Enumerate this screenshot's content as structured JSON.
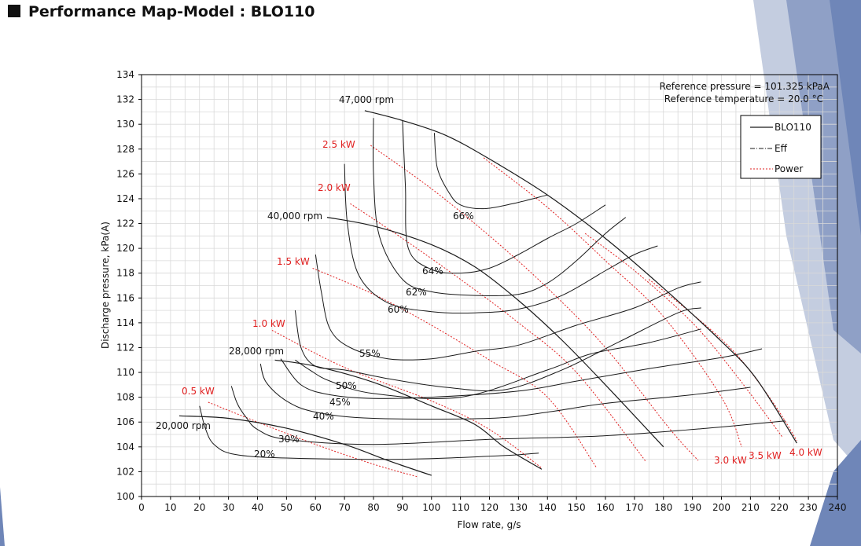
{
  "header": {
    "title": "Performance Map-Model : BLO110"
  },
  "colors": {
    "speed_line": "#1a1a1a",
    "eff_line": "#1a1a1a",
    "power_line": "#e02020",
    "grid": "#d9d9d9",
    "decor_blue": "#6f86b8"
  },
  "chart_data": {
    "type": "line",
    "title": "",
    "xlabel": "Flow rate, g/s",
    "ylabel": "Discharge pressure, kPa(A)",
    "xlim": [
      0,
      240
    ],
    "ylim": [
      100,
      134
    ],
    "x_ticks": [
      "0",
      "10",
      "20",
      "30",
      "40",
      "50",
      "60",
      "70",
      "80",
      "90",
      "100",
      "110",
      "120",
      "130",
      "140",
      "150",
      "160",
      "170",
      "180",
      "190",
      "200",
      "210",
      "220",
      "230",
      "240"
    ],
    "y_ticks": [
      "100",
      "102",
      "104",
      "106",
      "108",
      "110",
      "112",
      "114",
      "116",
      "118",
      "120",
      "122",
      "124",
      "126",
      "128",
      "130",
      "132",
      "134"
    ],
    "grid": true,
    "notes": [
      "Reference pressure = 101.325 kPaA",
      "Reference temperature = 20.0 °C"
    ],
    "legend": {
      "position": "top-right",
      "entries": [
        {
          "label": "BLO110",
          "style": "solid"
        },
        {
          "label": "Eff",
          "style": "dash-dot"
        },
        {
          "label": "Power",
          "style": "dotted-red"
        }
      ]
    },
    "speed_lines": [
      {
        "label": "20,000 rpm",
        "points": [
          [
            13,
            106.5
          ],
          [
            30,
            106.3
          ],
          [
            50,
            105.5
          ],
          [
            70,
            104.2
          ],
          [
            85,
            102.9
          ],
          [
            100,
            101.7
          ]
        ]
      },
      {
        "label": "28,000 rpm",
        "points": [
          [
            46,
            111
          ],
          [
            60,
            110.5
          ],
          [
            80,
            109.2
          ],
          [
            100,
            107.3
          ],
          [
            115,
            105.8
          ],
          [
            125,
            104
          ],
          [
            138,
            102.2
          ]
        ]
      },
      {
        "label": "40,000 rpm",
        "points": [
          [
            64,
            122.5
          ],
          [
            80,
            121.8
          ],
          [
            100,
            120.3
          ],
          [
            115,
            118.5
          ],
          [
            130,
            115.8
          ],
          [
            145,
            112.6
          ],
          [
            160,
            109
          ],
          [
            180,
            104
          ]
        ]
      },
      {
        "label": "47,000 rpm",
        "points": [
          [
            77,
            131.1
          ],
          [
            90,
            130.3
          ],
          [
            105,
            129.1
          ],
          [
            120,
            127.2
          ],
          [
            140,
            124.3
          ],
          [
            160,
            120.8
          ],
          [
            180,
            116.8
          ],
          [
            200,
            112.5
          ],
          [
            212,
            109.5
          ],
          [
            226,
            104.3
          ]
        ]
      }
    ],
    "efficiency_curves": [
      {
        "label": "20%",
        "points": [
          [
            20,
            107.3
          ],
          [
            22,
            105.5
          ],
          [
            25,
            104.2
          ],
          [
            32,
            103.4
          ],
          [
            50,
            103.1
          ],
          [
            90,
            103
          ],
          [
            125,
            103.3
          ],
          [
            137,
            103.5
          ]
        ]
      },
      {
        "label": "30%",
        "points": [
          [
            31,
            108.9
          ],
          [
            33,
            107.5
          ],
          [
            36,
            106.4
          ],
          [
            40,
            105.4
          ],
          [
            50,
            104.6
          ],
          [
            80,
            104.2
          ],
          [
            120,
            104.6
          ],
          [
            160,
            104.9
          ],
          [
            195,
            105.5
          ],
          [
            222,
            106.1
          ]
        ]
      },
      {
        "label": "40%",
        "points": [
          [
            41,
            110.7
          ],
          [
            43,
            109.2
          ],
          [
            50,
            107.7
          ],
          [
            60,
            106.8
          ],
          [
            80,
            106.3
          ],
          [
            120,
            106.3
          ],
          [
            140,
            106.8
          ],
          [
            160,
            107.5
          ],
          [
            190,
            108.2
          ],
          [
            210,
            108.8
          ]
        ]
      },
      {
        "label": "45%",
        "points": [
          [
            48,
            111.1
          ],
          [
            55,
            109
          ],
          [
            65,
            108.2
          ],
          [
            80,
            107.9
          ],
          [
            100,
            108
          ],
          [
            130,
            108.5
          ],
          [
            150,
            109.3
          ],
          [
            175,
            110.3
          ],
          [
            200,
            111.2
          ],
          [
            214,
            111.9
          ]
        ]
      },
      {
        "label": "50%",
        "points": [
          [
            53,
            111
          ],
          [
            58,
            110.2
          ],
          [
            65,
            109.3
          ],
          [
            80,
            108.3
          ],
          [
            110,
            108
          ],
          [
            140,
            110.2
          ],
          [
            155,
            111.5
          ],
          [
            175,
            112.4
          ],
          [
            193,
            113.5
          ]
        ]
      },
      {
        "label": "55%",
        "points": [
          [
            53,
            115
          ],
          [
            55,
            112
          ],
          [
            60,
            110.5
          ],
          [
            70,
            110.2
          ],
          [
            85,
            109.5
          ],
          [
            105,
            108.8
          ],
          [
            125,
            108.6
          ],
          [
            145,
            110.2
          ],
          [
            165,
            112.5
          ],
          [
            185,
            114.8
          ],
          [
            193,
            115.2
          ]
        ]
      },
      {
        "label": "60%",
        "points": [
          [
            60,
            119.5
          ],
          [
            62,
            116.5
          ],
          [
            65,
            113.5
          ],
          [
            72,
            112
          ],
          [
            85,
            111.1
          ],
          [
            100,
            111.1
          ],
          [
            115,
            111.7
          ],
          [
            130,
            112.2
          ],
          [
            150,
            113.8
          ],
          [
            170,
            115.2
          ],
          [
            185,
            116.8
          ],
          [
            193,
            117.3
          ]
        ]
      },
      {
        "label": "62%",
        "points": [
          [
            70,
            126.8
          ],
          [
            71,
            122
          ],
          [
            75,
            117.8
          ],
          [
            85,
            115.6
          ],
          [
            100,
            114.9
          ],
          [
            115,
            114.8
          ],
          [
            130,
            115.1
          ],
          [
            145,
            116.2
          ],
          [
            160,
            118.2
          ],
          [
            170,
            119.5
          ],
          [
            178,
            120.2
          ]
        ]
      },
      {
        "label": "64%",
        "points": [
          [
            80,
            130.5
          ],
          [
            80,
            126
          ],
          [
            82,
            121
          ],
          [
            90,
            117.5
          ],
          [
            100,
            116.5
          ],
          [
            115,
            116.2
          ],
          [
            130,
            116.3
          ],
          [
            140,
            117.2
          ],
          [
            150,
            119
          ],
          [
            160,
            121.2
          ],
          [
            167,
            122.5
          ]
        ]
      },
      {
        "label": "66%",
        "points": [
          [
            90,
            130.3
          ],
          [
            91,
            125
          ],
          [
            92,
            120
          ],
          [
            100,
            118.3
          ],
          [
            110,
            118
          ],
          [
            120,
            118.4
          ],
          [
            130,
            119.5
          ],
          [
            140,
            120.8
          ],
          [
            150,
            122
          ],
          [
            160,
            123.5
          ]
        ]
      },
      {
        "label": "",
        "points": [
          [
            101,
            129.3
          ],
          [
            102,
            126.5
          ],
          [
            106,
            124.5
          ],
          [
            110,
            123.5
          ],
          [
            118,
            123.2
          ],
          [
            128,
            123.6
          ],
          [
            140,
            124.3
          ]
        ]
      }
    ],
    "power_lines": [
      {
        "label": "0.5 kW",
        "points": [
          [
            23,
            107.6
          ],
          [
            40,
            106
          ],
          [
            60,
            104.2
          ],
          [
            80,
            102.6
          ],
          [
            95,
            101.6
          ]
        ]
      },
      {
        "label": "1.0 kW",
        "points": [
          [
            45,
            113.4
          ],
          [
            70,
            110.4
          ],
          [
            100,
            107.7
          ],
          [
            120,
            105.4
          ],
          [
            138,
            102.3
          ]
        ]
      },
      {
        "label": "1.5 kW",
        "points": [
          [
            59,
            118.4
          ],
          [
            80,
            116.3
          ],
          [
            100,
            113.8
          ],
          [
            120,
            111
          ],
          [
            140,
            108
          ],
          [
            157,
            102.3
          ]
        ]
      },
      {
        "label": "2.0 kW",
        "points": [
          [
            72,
            123.6
          ],
          [
            90,
            120.8
          ],
          [
            110,
            117.5
          ],
          [
            130,
            114
          ],
          [
            150,
            110
          ],
          [
            174,
            102.8
          ]
        ]
      },
      {
        "label": "2.5 kW",
        "points": [
          [
            79,
            128.3
          ],
          [
            100,
            124.8
          ],
          [
            120,
            121
          ],
          [
            140,
            116.8
          ],
          [
            160,
            112
          ],
          [
            182,
            105.5
          ],
          [
            192,
            102.9
          ]
        ]
      },
      {
        "label": "3.0 kW",
        "points": [
          [
            118,
            127.3
          ],
          [
            140,
            123.3
          ],
          [
            160,
            119
          ],
          [
            180,
            114.5
          ],
          [
            200,
            108
          ],
          [
            207,
            104
          ]
        ]
      },
      {
        "label": "3.5 kW",
        "points": [
          [
            153,
            121.2
          ],
          [
            170,
            118.2
          ],
          [
            190,
            114
          ],
          [
            205,
            109.8
          ],
          [
            221,
            104.8
          ]
        ]
      },
      {
        "label": "4.0 kW",
        "points": [
          [
            175,
            117.5
          ],
          [
            190,
            114.7
          ],
          [
            205,
            111.5
          ],
          [
            218,
            107.5
          ],
          [
            226,
            104.5
          ]
        ]
      }
    ]
  }
}
